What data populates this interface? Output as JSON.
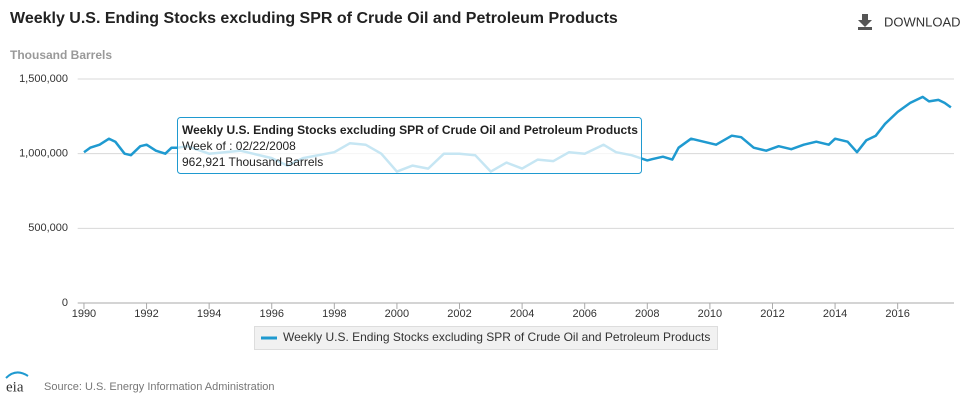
{
  "chart_data": {
    "type": "line",
    "title": "Weekly U.S. Ending Stocks excluding SPR of Crude Oil and Petroleum Products",
    "download": "DOWNLOAD",
    "y_label": "Thousand Barrels",
    "source": "Source: U.S. Energy Information Administration",
    "logo": "eia",
    "xlim": [
      1989.8,
      2017.8
    ],
    "xticks": [
      1990,
      1992,
      1994,
      1996,
      1998,
      2000,
      2002,
      2004,
      2006,
      2008,
      2010,
      2012,
      2014,
      2016
    ],
    "ylim": [
      0,
      1500000
    ],
    "yticks": [
      0,
      {
        "value": 500000,
        "label": "500,000"
      },
      {
        "value": 1000000,
        "label": "1,000,000"
      },
      {
        "value": 1500000,
        "label": "1,500,000"
      }
    ],
    "grid": true,
    "legend": "bottom",
    "series": [
      {
        "name": "Weekly U.S. Ending Stocks excluding SPR of Crude Oil and Petroleum Products",
        "color": "#1f9ad0",
        "x": [
          1990.0,
          1990.2,
          1990.5,
          1990.8,
          1991.0,
          1991.3,
          1991.5,
          1991.8,
          1992.0,
          1992.3,
          1992.6,
          1992.8,
          1993.0,
          1993.3,
          1994.0,
          1995.0,
          1996.0,
          1996.5,
          1997.0,
          1998.0,
          1998.5,
          1999.0,
          1999.5,
          2000.0,
          2000.5,
          2001.0,
          2001.5,
          2002.0,
          2002.5,
          2003.0,
          2003.5,
          2004.0,
          2004.5,
          2005.0,
          2005.5,
          2006.0,
          2006.6,
          2007.0,
          2007.5,
          2008.0,
          2008.15,
          2008.5,
          2008.8,
          2009.0,
          2009.4,
          2009.8,
          2010.2,
          2010.7,
          2011.0,
          2011.4,
          2011.8,
          2012.2,
          2012.6,
          2013.0,
          2013.4,
          2013.8,
          2014.0,
          2014.4,
          2014.7,
          2015.0,
          2015.3,
          2015.6,
          2016.0,
          2016.4,
          2016.8,
          2017.0,
          2017.3,
          2017.5,
          2017.7
        ],
        "values": [
          1010000,
          1040000,
          1060000,
          1100000,
          1080000,
          1000000,
          990000,
          1050000,
          1060000,
          1020000,
          1000000,
          1040000,
          1040000,
          1050000,
          1000000,
          1020000,
          970000,
          920000,
          970000,
          1010000,
          1070000,
          1060000,
          1000000,
          880000,
          920000,
          900000,
          1000000,
          1000000,
          990000,
          880000,
          940000,
          900000,
          960000,
          950000,
          1010000,
          1000000,
          1060000,
          1010000,
          990000,
          955000,
          963000,
          980000,
          960000,
          1040000,
          1100000,
          1080000,
          1060000,
          1120000,
          1110000,
          1040000,
          1020000,
          1050000,
          1030000,
          1060000,
          1080000,
          1060000,
          1100000,
          1080000,
          1010000,
          1090000,
          1120000,
          1200000,
          1280000,
          1340000,
          1380000,
          1350000,
          1360000,
          1340000,
          1310000
        ]
      }
    ],
    "tooltip": {
      "title": "Weekly U.S. Ending Stocks excluding SPR of Crude Oil and Petroleum Products",
      "date": "Week of : 02/22/2008",
      "value_label": "962,921 Thousand Barrels"
    }
  }
}
